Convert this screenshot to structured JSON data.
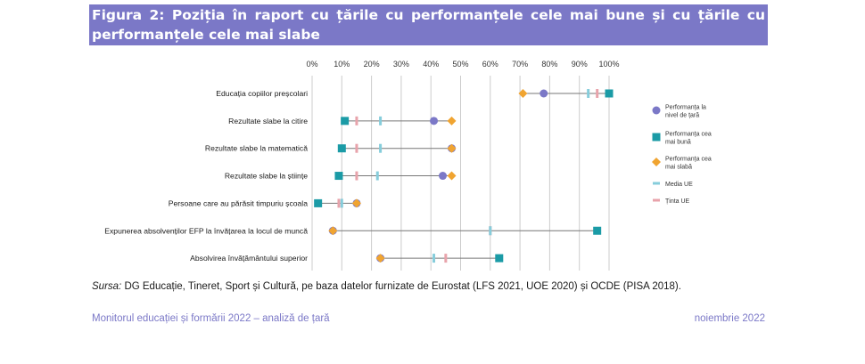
{
  "title": "Figura 2: Poziția în raport cu țările cu performanțele cele mai bune și cu țările cu performanțele cele mai slabe",
  "source_label": "Sursa:",
  "source_text": " DG Educație, Tineret, Sport și Cultură, pe baza datelor furnizate de Eurostat (LFS 2021, UOE 2020) și OCDE (PISA 2018).",
  "footer_left": "Monitorul educației și formării 2022 – analiză de țară",
  "footer_right": "noiembrie 2022",
  "colors": {
    "title_bg": "#7b78c7",
    "country": "#7b78c7",
    "best": "#1b9ba6",
    "worst": "#f0a431",
    "eu_avg": "#86cddb",
    "target": "#e8a3ab",
    "grid": "#cccccc",
    "range_line": "#777777"
  },
  "chart_data": {
    "type": "scatter",
    "title": "",
    "xlabel": "",
    "ylabel": "",
    "xlim": [
      0,
      100
    ],
    "x_ticks": [
      "0%",
      "10%",
      "20%",
      "30%",
      "40%",
      "50%",
      "60%",
      "70%",
      "80%",
      "90%",
      "100%"
    ],
    "grid": "vertical",
    "legend_position": "right",
    "categories": [
      "Educația copiilor preșcolari",
      "Rezultate slabe la citire",
      "Rezultate slabe la matematică",
      "Rezultate slabe la științe",
      "Persoane care au părăsit timpuriu școala",
      "Expunerea absolvenților EFP la învățarea la locul de muncă",
      "Absolvirea învățământului superior"
    ],
    "series": [
      {
        "name": "Performanța la nivel de țară",
        "marker": "circle",
        "color": "#7b78c7",
        "values": [
          78,
          41,
          47,
          44,
          15,
          7,
          23
        ]
      },
      {
        "name": "Performanța cea mai bună",
        "marker": "square",
        "color": "#1b9ba6",
        "values": [
          100,
          11,
          10,
          9,
          2,
          96,
          63
        ]
      },
      {
        "name": "Performanța cea mai slabă",
        "marker": "diamond",
        "color": "#f0a431",
        "values": [
          71,
          47,
          47,
          47,
          15,
          7,
          23
        ]
      },
      {
        "name": "Media UE",
        "marker": "bar",
        "color": "#86cddb",
        "values": [
          93,
          23,
          23,
          22,
          10,
          60,
          41
        ]
      },
      {
        "name": "Ținta UE",
        "marker": "bar",
        "color": "#e8a3ab",
        "values": [
          96,
          15,
          15,
          15,
          9,
          60,
          45
        ]
      }
    ]
  }
}
